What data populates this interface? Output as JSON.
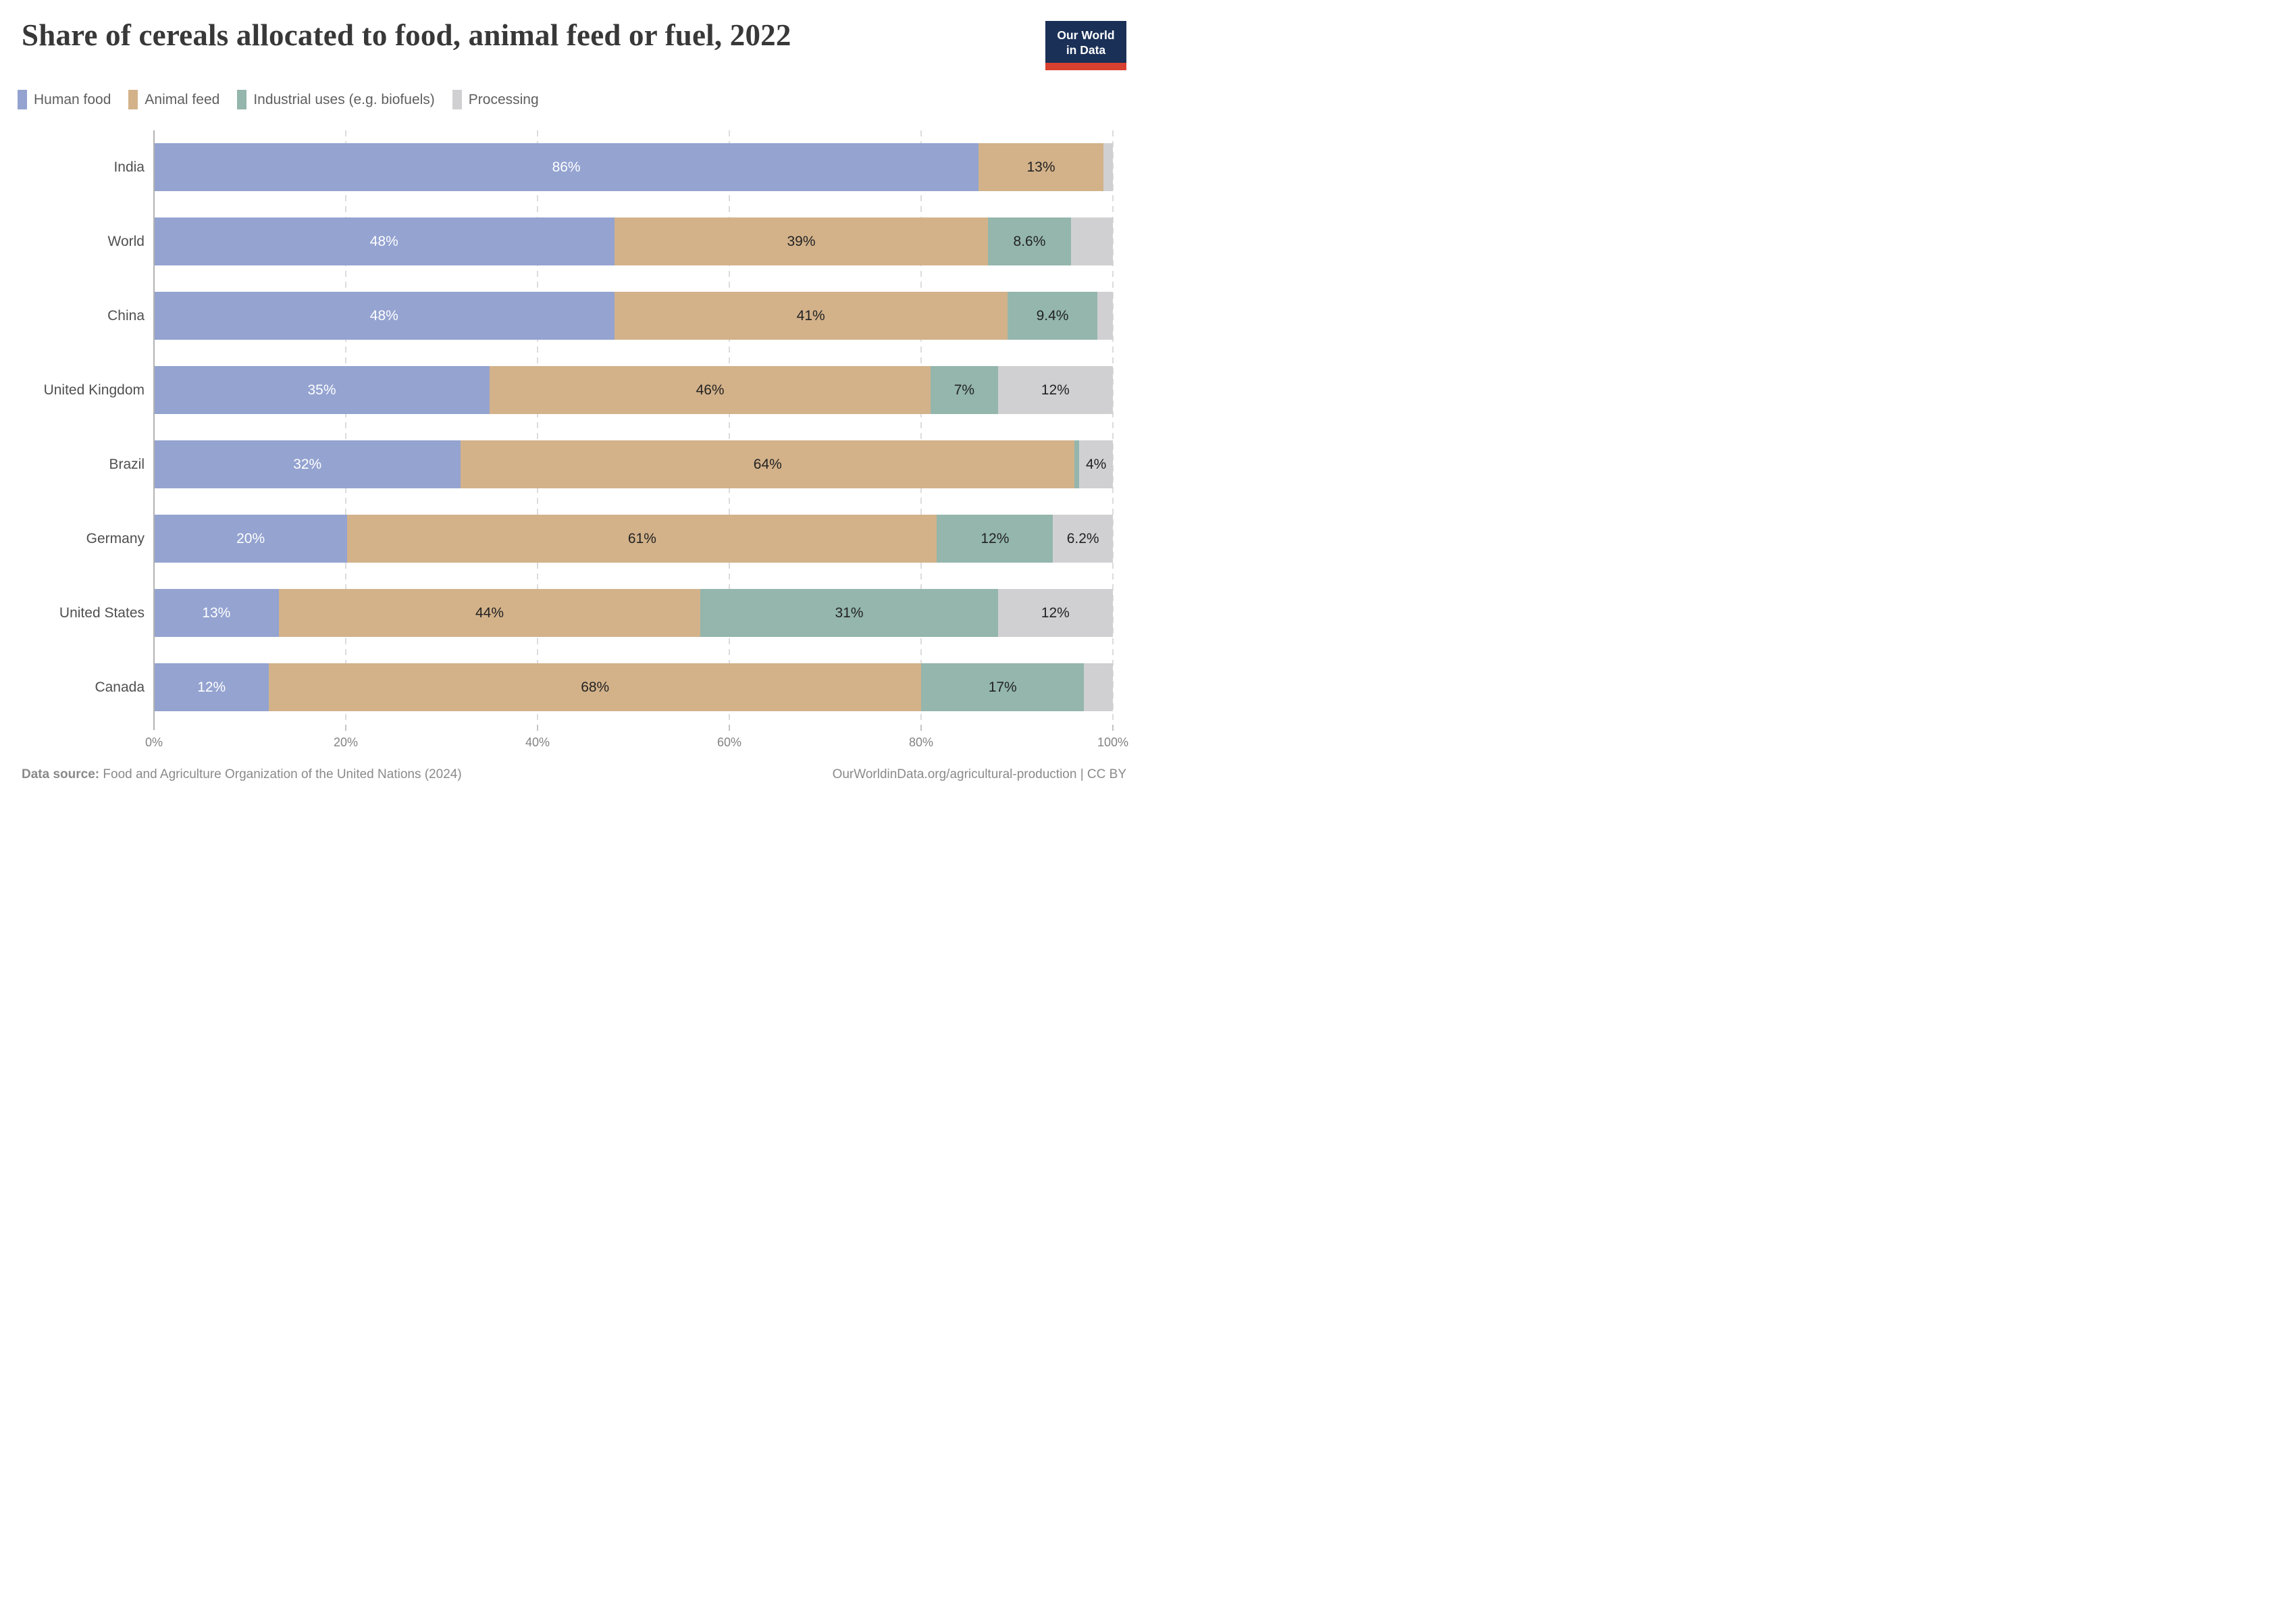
{
  "header": {
    "logo": {
      "line1": "Our World",
      "line2": "in Data"
    }
  },
  "chart_data": {
    "type": "bar",
    "stacked": true,
    "orientation": "horizontal",
    "title": "Share of cereals allocated to food, animal feed or fuel, 2022",
    "legend_position": "top",
    "grid": "vertical-dashed",
    "series": [
      {
        "name": "Human food",
        "color": "#94a3d0",
        "text_color": "#ffffff"
      },
      {
        "name": "Animal feed",
        "color": "#d3b28a",
        "text_color": "#222222"
      },
      {
        "name": "Industrial uses (e.g. biofuels)",
        "color": "#94b6ac",
        "text_color": "#222222"
      },
      {
        "name": "Processing",
        "color": "#d0d0d2",
        "text_color": "#222222"
      }
    ],
    "categories": [
      "India",
      "World",
      "China",
      "United Kingdom",
      "Brazil",
      "Germany",
      "United States",
      "Canada"
    ],
    "rows": [
      {
        "country": "India",
        "segments": [
          {
            "series": "Human food",
            "value": 86,
            "label": "86%"
          },
          {
            "series": "Animal feed",
            "value": 13,
            "label": "13%"
          },
          {
            "series": "Industrial uses (e.g. biofuels)",
            "value": 0,
            "label": ""
          },
          {
            "series": "Processing",
            "value": 1,
            "label": ""
          }
        ]
      },
      {
        "country": "World",
        "segments": [
          {
            "series": "Human food",
            "value": 48,
            "label": "48%"
          },
          {
            "series": "Animal feed",
            "value": 39,
            "label": "39%"
          },
          {
            "series": "Industrial uses (e.g. biofuels)",
            "value": 8.6,
            "label": "8.6%"
          },
          {
            "series": "Processing",
            "value": 4.4,
            "label": ""
          }
        ]
      },
      {
        "country": "China",
        "segments": [
          {
            "series": "Human food",
            "value": 48,
            "label": "48%"
          },
          {
            "series": "Animal feed",
            "value": 41,
            "label": "41%"
          },
          {
            "series": "Industrial uses (e.g. biofuels)",
            "value": 9.4,
            "label": "9.4%"
          },
          {
            "series": "Processing",
            "value": 1.6,
            "label": ""
          }
        ]
      },
      {
        "country": "United Kingdom",
        "segments": [
          {
            "series": "Human food",
            "value": 35,
            "label": "35%"
          },
          {
            "series": "Animal feed",
            "value": 46,
            "label": "46%"
          },
          {
            "series": "Industrial uses (e.g. biofuels)",
            "value": 7,
            "label": "7%"
          },
          {
            "series": "Processing",
            "value": 12,
            "label": "12%"
          }
        ]
      },
      {
        "country": "Brazil",
        "segments": [
          {
            "series": "Human food",
            "value": 32,
            "label": "32%"
          },
          {
            "series": "Animal feed",
            "value": 64,
            "label": "64%"
          },
          {
            "series": "Industrial uses (e.g. biofuels)",
            "value": 0.5,
            "label": ""
          },
          {
            "series": "Processing",
            "value": 3.5,
            "label": "4%"
          }
        ]
      },
      {
        "country": "Germany",
        "segments": [
          {
            "series": "Human food",
            "value": 20,
            "label": "20%"
          },
          {
            "series": "Animal feed",
            "value": 61,
            "label": "61%"
          },
          {
            "series": "Industrial uses (e.g. biofuels)",
            "value": 12,
            "label": "12%"
          },
          {
            "series": "Processing",
            "value": 6.2,
            "label": "6.2%"
          }
        ]
      },
      {
        "country": "United States",
        "segments": [
          {
            "series": "Human food",
            "value": 13,
            "label": "13%"
          },
          {
            "series": "Animal feed",
            "value": 44,
            "label": "44%"
          },
          {
            "series": "Industrial uses (e.g. biofuels)",
            "value": 31,
            "label": "31%"
          },
          {
            "series": "Processing",
            "value": 12,
            "label": "12%"
          }
        ]
      },
      {
        "country": "Canada",
        "segments": [
          {
            "series": "Human food",
            "value": 12,
            "label": "12%"
          },
          {
            "series": "Animal feed",
            "value": 68,
            "label": "68%"
          },
          {
            "series": "Industrial uses (e.g. biofuels)",
            "value": 17,
            "label": "17%"
          },
          {
            "series": "Processing",
            "value": 3,
            "label": ""
          }
        ]
      }
    ],
    "x_axis": {
      "ticks": [
        "0%",
        "20%",
        "40%",
        "60%",
        "80%",
        "100%"
      ],
      "range": [
        0,
        100
      ]
    }
  },
  "footer": {
    "source_prefix": "Data source:",
    "source": "Food and Agriculture Organization of the United Nations (2024)",
    "credit": "OurWorldinData.org/agricultural-production | CC BY"
  }
}
